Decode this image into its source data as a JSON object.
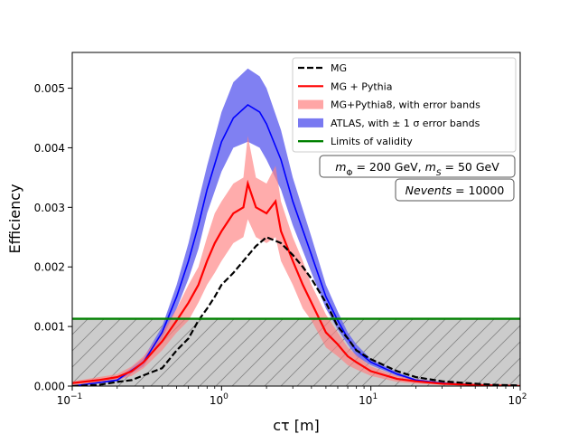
{
  "chart_data": {
    "type": "line",
    "xlabel": "cτ [m]",
    "ylabel": "Efficiency",
    "xscale": "log",
    "xlim": [
      0.1,
      100
    ],
    "ylim": [
      0,
      0.0056
    ],
    "grid": false,
    "legend_position": "top-right",
    "x_ticks": [
      {
        "value": 0.1,
        "base": "10",
        "exp": "−1"
      },
      {
        "value": 1,
        "base": "10",
        "exp": "0"
      },
      {
        "value": 10,
        "base": "10",
        "exp": "1"
      },
      {
        "value": 100,
        "base": "10",
        "exp": "2"
      }
    ],
    "y_ticks": [
      {
        "value": 0,
        "label": "0.000"
      },
      {
        "value": 0.001,
        "label": "0.001"
      },
      {
        "value": 0.002,
        "label": "0.002"
      },
      {
        "value": 0.003,
        "label": "0.003"
      },
      {
        "value": 0.004,
        "label": "0.004"
      },
      {
        "value": 0.005,
        "label": "0.005"
      }
    ],
    "series": [
      {
        "name": "MG",
        "style": "dashed",
        "color": "#000000",
        "x": [
          0.1,
          0.15,
          0.2,
          0.25,
          0.3,
          0.4,
          0.5,
          0.6,
          0.7,
          0.8,
          0.9,
          1.0,
          1.2,
          1.4,
          1.7,
          2.0,
          2.5,
          3.0,
          3.5,
          4.0,
          5.0,
          6.0,
          7.0,
          8.0,
          10,
          15,
          20,
          30,
          50,
          70,
          100
        ],
        "y": [
          0.0,
          2e-05,
          7e-05,
          0.0001,
          0.00018,
          0.0003,
          0.0006,
          0.0008,
          0.0011,
          0.0013,
          0.0015,
          0.0017,
          0.0019,
          0.0021,
          0.00235,
          0.0025,
          0.0024,
          0.0022,
          0.002,
          0.0018,
          0.0014,
          0.001,
          0.0008,
          0.0006,
          0.00045,
          0.00025,
          0.00015,
          8e-05,
          4e-05,
          2e-05,
          1e-05
        ]
      },
      {
        "name": "MG + Pythia",
        "style": "solid",
        "color": "#ff0000",
        "x": [
          0.1,
          0.15,
          0.2,
          0.25,
          0.3,
          0.4,
          0.5,
          0.6,
          0.7,
          0.8,
          0.9,
          1.0,
          1.2,
          1.4,
          1.5,
          1.7,
          2.0,
          2.3,
          2.5,
          3.0,
          3.5,
          4.0,
          5.0,
          6.0,
          7.0,
          8.0,
          10,
          15,
          20,
          30,
          50,
          70,
          100
        ],
        "y": [
          5e-05,
          0.0001,
          0.00015,
          0.00025,
          0.0004,
          0.00075,
          0.0011,
          0.0014,
          0.0017,
          0.0021,
          0.0024,
          0.0026,
          0.0029,
          0.003,
          0.0034,
          0.003,
          0.0029,
          0.0031,
          0.0026,
          0.0021,
          0.0017,
          0.0014,
          0.0009,
          0.0007,
          0.0005,
          0.0004,
          0.00025,
          0.00012,
          8e-05,
          4e-05,
          2e-05,
          1e-05,
          0.0
        ]
      },
      {
        "name": "MG+Pythia8, with error bands",
        "style": "band",
        "color": "#ff8080",
        "x": [
          0.1,
          0.15,
          0.2,
          0.25,
          0.3,
          0.4,
          0.5,
          0.6,
          0.7,
          0.8,
          0.9,
          1.0,
          1.2,
          1.4,
          1.5,
          1.7,
          2.0,
          2.3,
          2.5,
          3.0,
          3.5,
          4.0,
          5.0,
          6.0,
          7.0,
          8.0,
          10,
          15,
          20,
          30,
          50,
          70,
          100
        ],
        "lower": [
          2e-05,
          6e-05,
          0.0001,
          0.00017,
          0.0003,
          0.0006,
          0.0009,
          0.0011,
          0.0014,
          0.0017,
          0.0019,
          0.0021,
          0.0024,
          0.0025,
          0.0028,
          0.0025,
          0.0024,
          0.0025,
          0.0021,
          0.0017,
          0.0013,
          0.0011,
          0.00065,
          0.0005,
          0.00035,
          0.00028,
          0.00017,
          7e-05,
          4e-05,
          2e-05,
          1e-05,
          0.0,
          0.0
        ],
        "upper": [
          8e-05,
          0.00015,
          0.0002,
          0.00033,
          0.0005,
          0.0009,
          0.0013,
          0.0017,
          0.002,
          0.0025,
          0.0029,
          0.0031,
          0.0034,
          0.0035,
          0.0042,
          0.0035,
          0.0034,
          0.0037,
          0.0031,
          0.0025,
          0.0021,
          0.0017,
          0.0012,
          0.0009,
          0.00065,
          0.00052,
          0.00033,
          0.00017,
          0.00012,
          6e-05,
          3e-05,
          2e-05,
          1e-05
        ]
      },
      {
        "name": "ATLAS, with ± 1 σ error bands",
        "style": "curve-with-band",
        "color": "#0000ff",
        "band_color": "#6a6af0",
        "x": [
          0.1,
          0.2,
          0.3,
          0.4,
          0.5,
          0.6,
          0.7,
          0.8,
          1.0,
          1.2,
          1.5,
          1.8,
          2.0,
          2.5,
          3.0,
          4.0,
          5.0,
          6.0,
          7.0,
          8.0,
          10,
          15,
          20,
          30,
          50,
          70,
          100
        ],
        "y": [
          0.0,
          0.0001,
          0.0004,
          0.0009,
          0.0015,
          0.0021,
          0.0027,
          0.0033,
          0.0041,
          0.0045,
          0.00472,
          0.0046,
          0.0044,
          0.0038,
          0.0031,
          0.0022,
          0.0015,
          0.0011,
          0.0008,
          0.0006,
          0.0004,
          0.0002,
          0.0001,
          5e-05,
          2e-05,
          1e-05,
          0.0
        ],
        "lower": [
          0.0,
          8e-05,
          0.00033,
          0.0008,
          0.0013,
          0.0018,
          0.0023,
          0.0029,
          0.0036,
          0.004,
          0.0041,
          0.004,
          0.0038,
          0.0033,
          0.0027,
          0.0019,
          0.0013,
          0.00095,
          0.0007,
          0.0005,
          0.00035,
          0.00017,
          8e-05,
          4e-05,
          2e-05,
          1e-05,
          0.0
        ],
        "upper": [
          0.0,
          0.00012,
          0.00047,
          0.001,
          0.0017,
          0.0024,
          0.0031,
          0.0037,
          0.0046,
          0.0051,
          0.00533,
          0.0052,
          0.005,
          0.0043,
          0.0035,
          0.0025,
          0.0017,
          0.00125,
          0.0009,
          0.0007,
          0.00045,
          0.00023,
          0.00012,
          6e-05,
          2e-05,
          1e-05,
          0.0
        ]
      },
      {
        "name": "Limits of validity",
        "style": "hline",
        "color": "#008000",
        "y": 0.00113
      }
    ],
    "hatched_region": {
      "ymin": 0,
      "ymax": 0.00113,
      "fill": "#cccccc"
    },
    "annotations": [
      {
        "id": "masses",
        "parts": [
          {
            "text": "m",
            "italic": true
          },
          {
            "text": "Φ",
            "sub": true
          },
          {
            "text": " = 200 GeV, "
          },
          {
            "text": "m",
            "italic": true
          },
          {
            "text": "S",
            "sub": true,
            "italic": true
          },
          {
            "text": " = 50 GeV"
          }
        ]
      },
      {
        "id": "events",
        "parts": [
          {
            "text": "Nevents",
            "italic": true
          },
          {
            "text": " = 10000"
          }
        ]
      }
    ]
  }
}
